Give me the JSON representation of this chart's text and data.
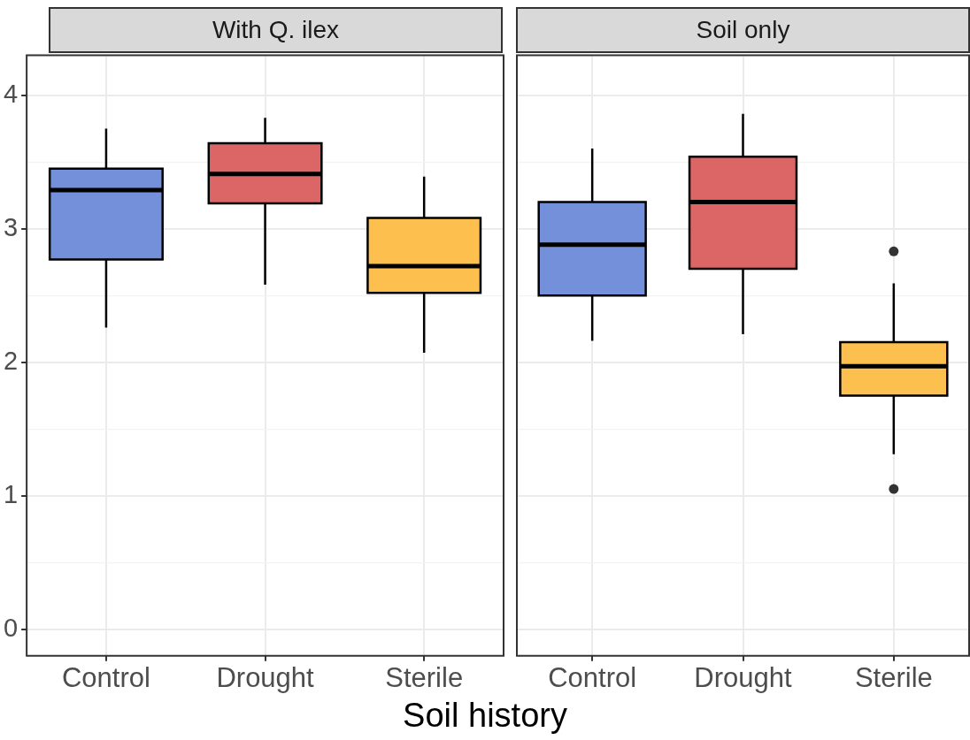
{
  "chart_data": [
    {
      "type": "box",
      "title": "With Q. ilex",
      "xlabel": "Soil history",
      "categories": [
        "Control",
        "Drought",
        "Sterile"
      ],
      "colors": [
        "#7490db",
        "#dc6566",
        "#fdbf4d"
      ],
      "boxes": [
        {
          "low": 2.26,
          "q1": 2.77,
          "median": 3.29,
          "q3": 3.45,
          "high": 3.75
        },
        {
          "low": 2.58,
          "q1": 3.19,
          "median": 3.41,
          "q3": 3.64,
          "high": 3.83
        },
        {
          "low": 2.07,
          "q1": 2.52,
          "median": 2.72,
          "q3": 3.08,
          "high": 3.39
        }
      ],
      "ylim": [
        -0.2,
        4.3
      ],
      "yticks": [
        0,
        {
          "value": 0.5,
          "label": null
        },
        1,
        {
          "value": 1.5,
          "label": null
        },
        2,
        {
          "value": 2.5,
          "label": null
        },
        3,
        {
          "value": 3.5,
          "label": null
        },
        4
      ],
      "grid": true
    },
    {
      "type": "box",
      "title": "Soil only",
      "categories": [
        "Control",
        "Drought",
        "Sterile"
      ],
      "colors": [
        "#7490db",
        "#dc6566",
        "#fdbf4d"
      ],
      "boxes": [
        {
          "low": 2.16,
          "q1": 2.5,
          "median": 2.88,
          "q3": 3.2,
          "high": 3.6
        },
        {
          "low": 2.21,
          "q1": 2.7,
          "median": 3.2,
          "q3": 3.54,
          "high": 3.86
        },
        {
          "low": 1.31,
          "q1": 1.75,
          "median": 1.97,
          "q3": 2.15,
          "high": 2.59,
          "outliers": [
            2.83,
            1.05
          ]
        }
      ],
      "ylim": [
        -0.2,
        4.3
      ],
      "yticks": [
        0,
        {
          "value": 0.5,
          "label": null
        },
        1,
        {
          "value": 1.5,
          "label": null
        },
        2,
        {
          "value": 2.5,
          "label": null
        },
        3,
        {
          "value": 3.5,
          "label": null
        },
        4
      ],
      "grid": true,
      "tick_labels": "x"
    }
  ]
}
